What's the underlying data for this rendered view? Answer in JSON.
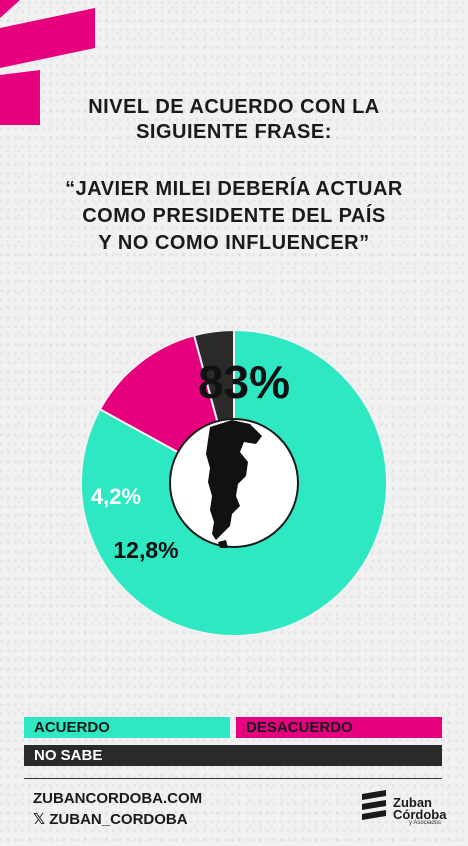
{
  "title_lines": [
    "NIVEL DE ACUERDO CON LA",
    "SIGUIENTE FRASE:"
  ],
  "quote_lines": [
    "“JAVIER MILEI DEBERÍA ACTUAR",
    "COMO PRESIDENTE DEL PAÍS",
    "Y NO COMO INFLUENCER”"
  ],
  "colors": {
    "acuerdo": "#2de8c2",
    "desacuerdo": "#e6007e",
    "no_sabe": "#2a2a2a",
    "accent": "#e6007e"
  },
  "chart_data": {
    "type": "pie",
    "variant": "donut",
    "slices": [
      {
        "name": "ACUERDO",
        "value": 83,
        "label": "83%"
      },
      {
        "name": "DESACUERDO",
        "value": 12.8,
        "label": "12,8%"
      },
      {
        "name": "NO SABE",
        "value": 4.2,
        "label": "4,2%"
      }
    ],
    "center_icon": "argentina-map-icon"
  },
  "legend": [
    {
      "label": "ACUERDO"
    },
    {
      "label": "DESACUERDO"
    },
    {
      "label": "NO SABE"
    }
  ],
  "footer": {
    "website": "ZUBANCORDOBA.COM",
    "social": "𝕏 ZUBAN_CORDOBA",
    "logo_line1": "Zuban",
    "logo_line2": "Córdoba",
    "logo_sub": "y Asociados"
  }
}
